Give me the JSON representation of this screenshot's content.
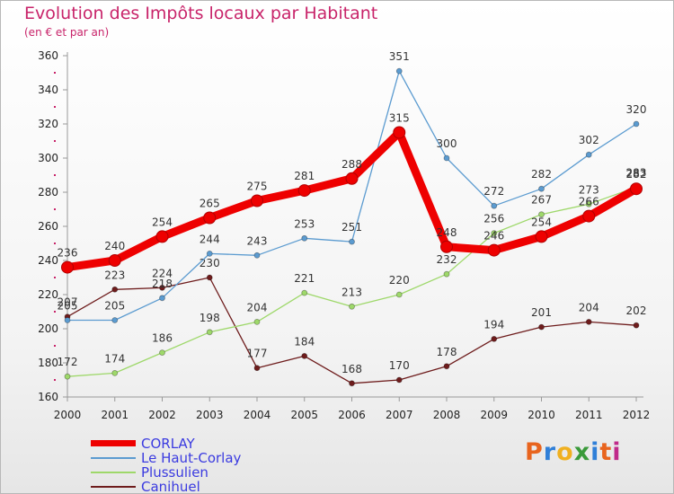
{
  "chart_data": {
    "type": "line",
    "title": "Evolution des Impôts locaux par Habitant",
    "subtitle": "(en € et par an)",
    "categories": [
      "2000",
      "2001",
      "2002",
      "2003",
      "2004",
      "2005",
      "2006",
      "2007",
      "2008",
      "2009",
      "2010",
      "2011",
      "2012"
    ],
    "ylim": [
      160,
      360
    ],
    "yticks": [
      160,
      180,
      200,
      220,
      240,
      260,
      280,
      300,
      320,
      340,
      360
    ],
    "series": [
      {
        "name": "CORLAY",
        "color": "#ee0000",
        "values": [
          236,
          240,
          254,
          265,
          275,
          281,
          288,
          315,
          248,
          246,
          254,
          266,
          282
        ]
      },
      {
        "name": "Le Haut-Corlay",
        "color": "#5b9bd0",
        "values": [
          205,
          205,
          218,
          244,
          243,
          253,
          251,
          351,
          300,
          272,
          282,
          302,
          320
        ]
      },
      {
        "name": "Plussulien",
        "color": "#9ed86a",
        "values": [
          172,
          174,
          186,
          198,
          204,
          221,
          213,
          220,
          232,
          256,
          267,
          273,
          283
        ]
      },
      {
        "name": "Canihuel",
        "color": "#6e1c1c",
        "values": [
          207,
          223,
          224,
          230,
          177,
          184,
          168,
          170,
          178,
          194,
          201,
          204,
          202
        ]
      }
    ]
  },
  "logo": {
    "letters": [
      "P",
      "r",
      "o",
      "x",
      "i",
      "t",
      "i"
    ]
  }
}
